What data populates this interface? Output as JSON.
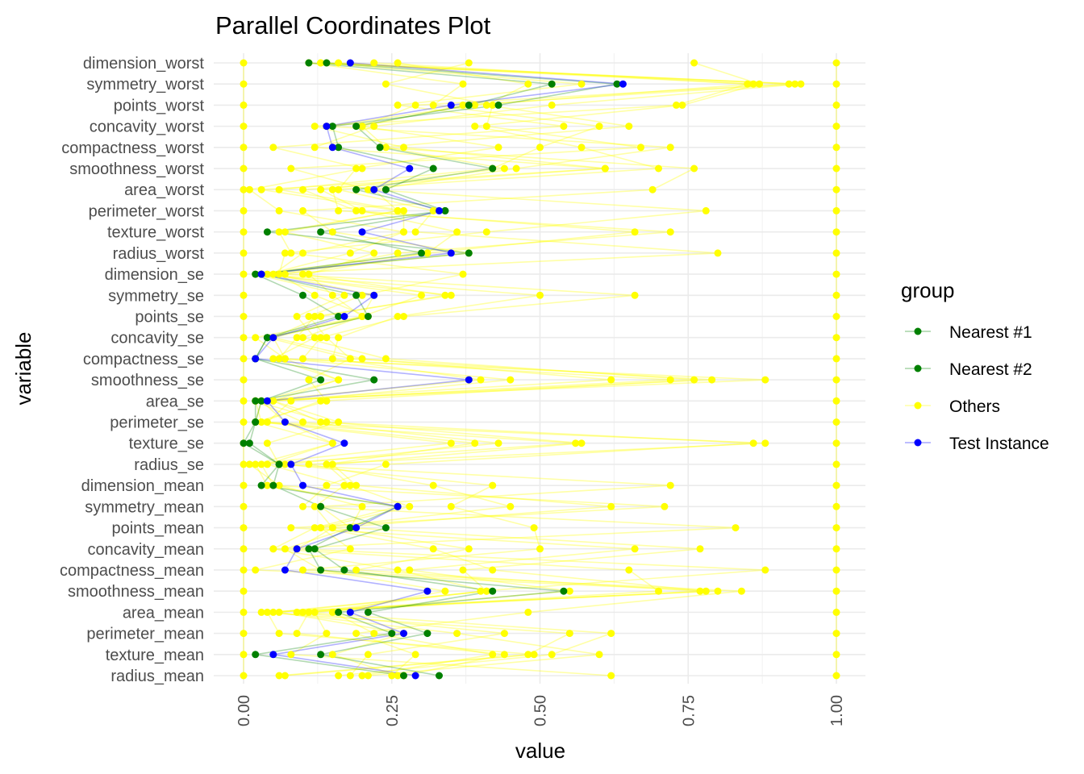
{
  "chart_data": {
    "type": "line",
    "title": "Parallel Coordinates Plot",
    "xlabel": "value",
    "ylabel": "variable",
    "xlim": [
      0,
      1
    ],
    "x_ticks": [
      "0.00",
      "0.25",
      "0.50",
      "0.75",
      "1.00"
    ],
    "x_tick_values": [
      0,
      0.25,
      0.5,
      0.75,
      1
    ],
    "grid": true,
    "legend": {
      "title": "group",
      "position": "right"
    },
    "categories": [
      "radius_mean",
      "texture_mean",
      "perimeter_mean",
      "area_mean",
      "smoothness_mean",
      "compactness_mean",
      "concavity_mean",
      "points_mean",
      "symmetry_mean",
      "dimension_mean",
      "radius_se",
      "texture_se",
      "perimeter_se",
      "area_se",
      "smoothness_se",
      "compactness_se",
      "concavity_se",
      "points_se",
      "symmetry_se",
      "dimension_se",
      "radius_worst",
      "texture_worst",
      "perimeter_worst",
      "area_worst",
      "smoothness_worst",
      "compactness_worst",
      "concavity_worst",
      "points_worst",
      "symmetry_worst",
      "dimension_worst"
    ],
    "series": [
      {
        "name": "Others",
        "color": "#FFFF00",
        "opacity": 0.35,
        "values": [
          0.06,
          0.48,
          0.55,
          0.03,
          0.8,
          0.02,
          0.18,
          0.13,
          0.28,
          0.18,
          0.14,
          0.39,
          0.04,
          0.08,
          0.45,
          0.07,
          0.02,
          0.2,
          0.22,
          0.05,
          0.1,
          0.27,
          0.27,
          0.06,
          0.42,
          0.5,
          0.6,
          0.32,
          0.37,
          0.11
        ]
      },
      {
        "name": "Others",
        "color": "#FFFF00",
        "opacity": 0.35,
        "values": [
          0.16,
          0.52,
          0.62,
          0.1,
          0.7,
          0.65,
          0.05,
          0.83,
          0.1,
          0.14,
          0.24,
          0.86,
          0.13,
          0.05,
          0.72,
          0.1,
          0.13,
          0.27,
          0.66,
          0.07,
          0.26,
          0.72,
          0.16,
          0.15,
          0.7,
          0.57,
          0.39,
          0.74,
          0.87,
          0.76
        ]
      },
      {
        "name": "Others",
        "color": "#FFFF00",
        "opacity": 0.35,
        "values": [
          0.25,
          0.29,
          0.19,
          0.48,
          0.84,
          0.1,
          0.5,
          0.49,
          0.35,
          0.42,
          0.07,
          0.43,
          0.1,
          0.02,
          0.88,
          0.06,
          0.09,
          0.12,
          0.35,
          0.03,
          0.38,
          0.15,
          0.1,
          0.69,
          0.76,
          0.23,
          0.65,
          0.41,
          0.48,
          0.26
        ]
      },
      {
        "name": "Others",
        "color": "#FFFF00",
        "opacity": 0.35,
        "values": [
          0.62,
          0.08,
          0.14,
          0.12,
          0.55,
          0.28,
          0.66,
          0.08,
          0.71,
          0.05,
          0.03,
          0.56,
          0.02,
          0.14,
          0.11,
          0.18,
          0.04,
          0.21,
          0.12,
          0.06,
          0.07,
          0.41,
          0.78,
          0.21,
          0.08,
          0.67,
          0.41,
          0.42,
          0.24,
          0.38
        ]
      },
      {
        "name": "Others",
        "color": "#FFFF00",
        "opacity": 0.35,
        "values": [
          0.07,
          0.49,
          0.06,
          0.04,
          0.78,
          0.42,
          0.32,
          0.13,
          0.45,
          0.32,
          0.11,
          0.88,
          0.03,
          0.13,
          0.76,
          0.24,
          0.1,
          0.2,
          0.3,
          0.04,
          0.18,
          0.27,
          0.06,
          0.01,
          0.2,
          0.05,
          0.54,
          0.26,
          0.57,
          0.13
        ]
      },
      {
        "name": "Others",
        "color": "#FFFF00",
        "opacity": 0.35,
        "values": [
          0.2,
          0.42,
          0.22,
          0.15,
          0.34,
          0.13,
          0.07,
          0.18,
          0.13,
          0.72,
          0.06,
          0.04,
          0.16,
          0.05,
          0.16,
          0.07,
          0.05,
          0.2,
          0.15,
          0.11,
          0.22,
          0.07,
          0.26,
          0.22,
          0.46,
          0.72,
          0.14,
          0.39,
          0.86,
          0.14
        ]
      },
      {
        "name": "Others",
        "color": "#FFFF00",
        "opacity": 0.35,
        "values": [
          0.18,
          0.21,
          0.44,
          0.09,
          0.77,
          0.19,
          0.38,
          0.15,
          0.12,
          0.17,
          0.04,
          0.15,
          0.07,
          0.03,
          0.79,
          0.18,
          0.14,
          0.11,
          0.2,
          0.37,
          0.08,
          0.06,
          0.26,
          0.03,
          0.61,
          0.27,
          0.12,
          0.73,
          0.85,
          0.22
        ]
      },
      {
        "name": "Others",
        "color": "#FFFF00",
        "opacity": 0.35,
        "values": [
          0.27,
          0.44,
          0.09,
          0.11,
          0.4,
          0.88,
          0.09,
          0.15,
          0.62,
          0.19,
          0.15,
          0.57,
          0.14,
          0.02,
          0.62,
          0.2,
          0.05,
          0.13,
          0.34,
          0.1,
          0.31,
          0.36,
          0.2,
          0.13,
          0.44,
          0.24,
          0.2,
          0.29,
          0.92,
          0.16
        ]
      },
      {
        "name": "Others",
        "color": "#FFFF00",
        "opacity": 0.35,
        "values": [
          0.26,
          0.15,
          0.27,
          0.06,
          0.41,
          0.37,
          0.77,
          0.18,
          0.2,
          0.06,
          0.01,
          0.35,
          0.03,
          0.02,
          0.4,
          0.15,
          0.16,
          0.26,
          0.5,
          0.03,
          0.8,
          0.29,
          0.32,
          0.16,
          0.19,
          0.43,
          0.2,
          0.37,
          0.93,
          0.11
        ]
      },
      {
        "name": "Others",
        "color": "#FFFF00",
        "opacity": 0.35,
        "values": [
          0.21,
          0.6,
          0.36,
          0.05,
          0.41,
          0.26,
          0.05,
          0.12,
          0.26,
          0.04,
          0.02,
          0.15,
          0.02,
          0.03,
          0.16,
          0.05,
          0.12,
          0.09,
          0.17,
          0.02,
          0.31,
          0.66,
          0.19,
          0.1,
          0.61,
          0.12,
          0.22,
          0.52,
          0.94,
          0.13
        ]
      },
      {
        "name": "Others",
        "color": "#FFFF00",
        "opacity": 0.35,
        "values": [
          0.0,
          0.0,
          0.0,
          0.0,
          0.0,
          0.0,
          0.0,
          0.0,
          0.0,
          0.0,
          0.0,
          0.0,
          0.0,
          0.0,
          0.0,
          0.0,
          0.0,
          0.0,
          0.0,
          0.0,
          0.0,
          0.0,
          0.0,
          0.0,
          0.0,
          0.0,
          0.0,
          0.0,
          0.0,
          0.0
        ]
      },
      {
        "name": "Others",
        "color": "#FFFF00",
        "opacity": 0.35,
        "values": [
          1.0,
          1.0,
          1.0,
          1.0,
          1.0,
          1.0,
          1.0,
          1.0,
          1.0,
          1.0,
          1.0,
          1.0,
          1.0,
          1.0,
          1.0,
          1.0,
          1.0,
          1.0,
          1.0,
          1.0,
          1.0,
          1.0,
          1.0,
          1.0,
          1.0,
          1.0,
          1.0,
          1.0,
          1.0,
          1.0
        ]
      },
      {
        "name": "Nearest #1",
        "color": "#008000",
        "opacity": 0.3,
        "values": [
          0.33,
          0.13,
          0.31,
          0.21,
          0.42,
          0.17,
          0.12,
          0.24,
          0.13,
          0.05,
          0.06,
          0.01,
          0.02,
          0.02,
          0.22,
          0.02,
          0.04,
          0.16,
          0.1,
          0.02,
          0.38,
          0.04,
          0.34,
          0.24,
          0.32,
          0.16,
          0.15,
          0.43,
          0.63,
          0.14
        ]
      },
      {
        "name": "Nearest #2",
        "color": "#008000",
        "opacity": 0.3,
        "values": [
          0.27,
          0.02,
          0.25,
          0.16,
          0.54,
          0.13,
          0.11,
          0.18,
          0.26,
          0.03,
          0.06,
          0.0,
          0.02,
          0.03,
          0.13,
          0.02,
          0.04,
          0.21,
          0.19,
          0.03,
          0.3,
          0.13,
          0.34,
          0.19,
          0.42,
          0.23,
          0.19,
          0.38,
          0.52,
          0.11
        ]
      },
      {
        "name": "Test Instance",
        "color": "#0000FF",
        "opacity": 0.3,
        "values": [
          0.29,
          0.05,
          0.27,
          0.18,
          0.31,
          0.07,
          0.09,
          0.19,
          0.26,
          0.1,
          0.08,
          0.17,
          0.07,
          0.04,
          0.38,
          0.02,
          0.05,
          0.17,
          0.22,
          0.03,
          0.35,
          0.2,
          0.33,
          0.22,
          0.28,
          0.15,
          0.14,
          0.35,
          0.64,
          0.18
        ]
      }
    ],
    "legend_entries": [
      {
        "label": "Nearest #1",
        "color": "#008000"
      },
      {
        "label": "Nearest #2",
        "color": "#008000"
      },
      {
        "label": "Others",
        "color": "#FFFF00"
      },
      {
        "label": "Test Instance",
        "color": "#0000FF"
      }
    ]
  }
}
